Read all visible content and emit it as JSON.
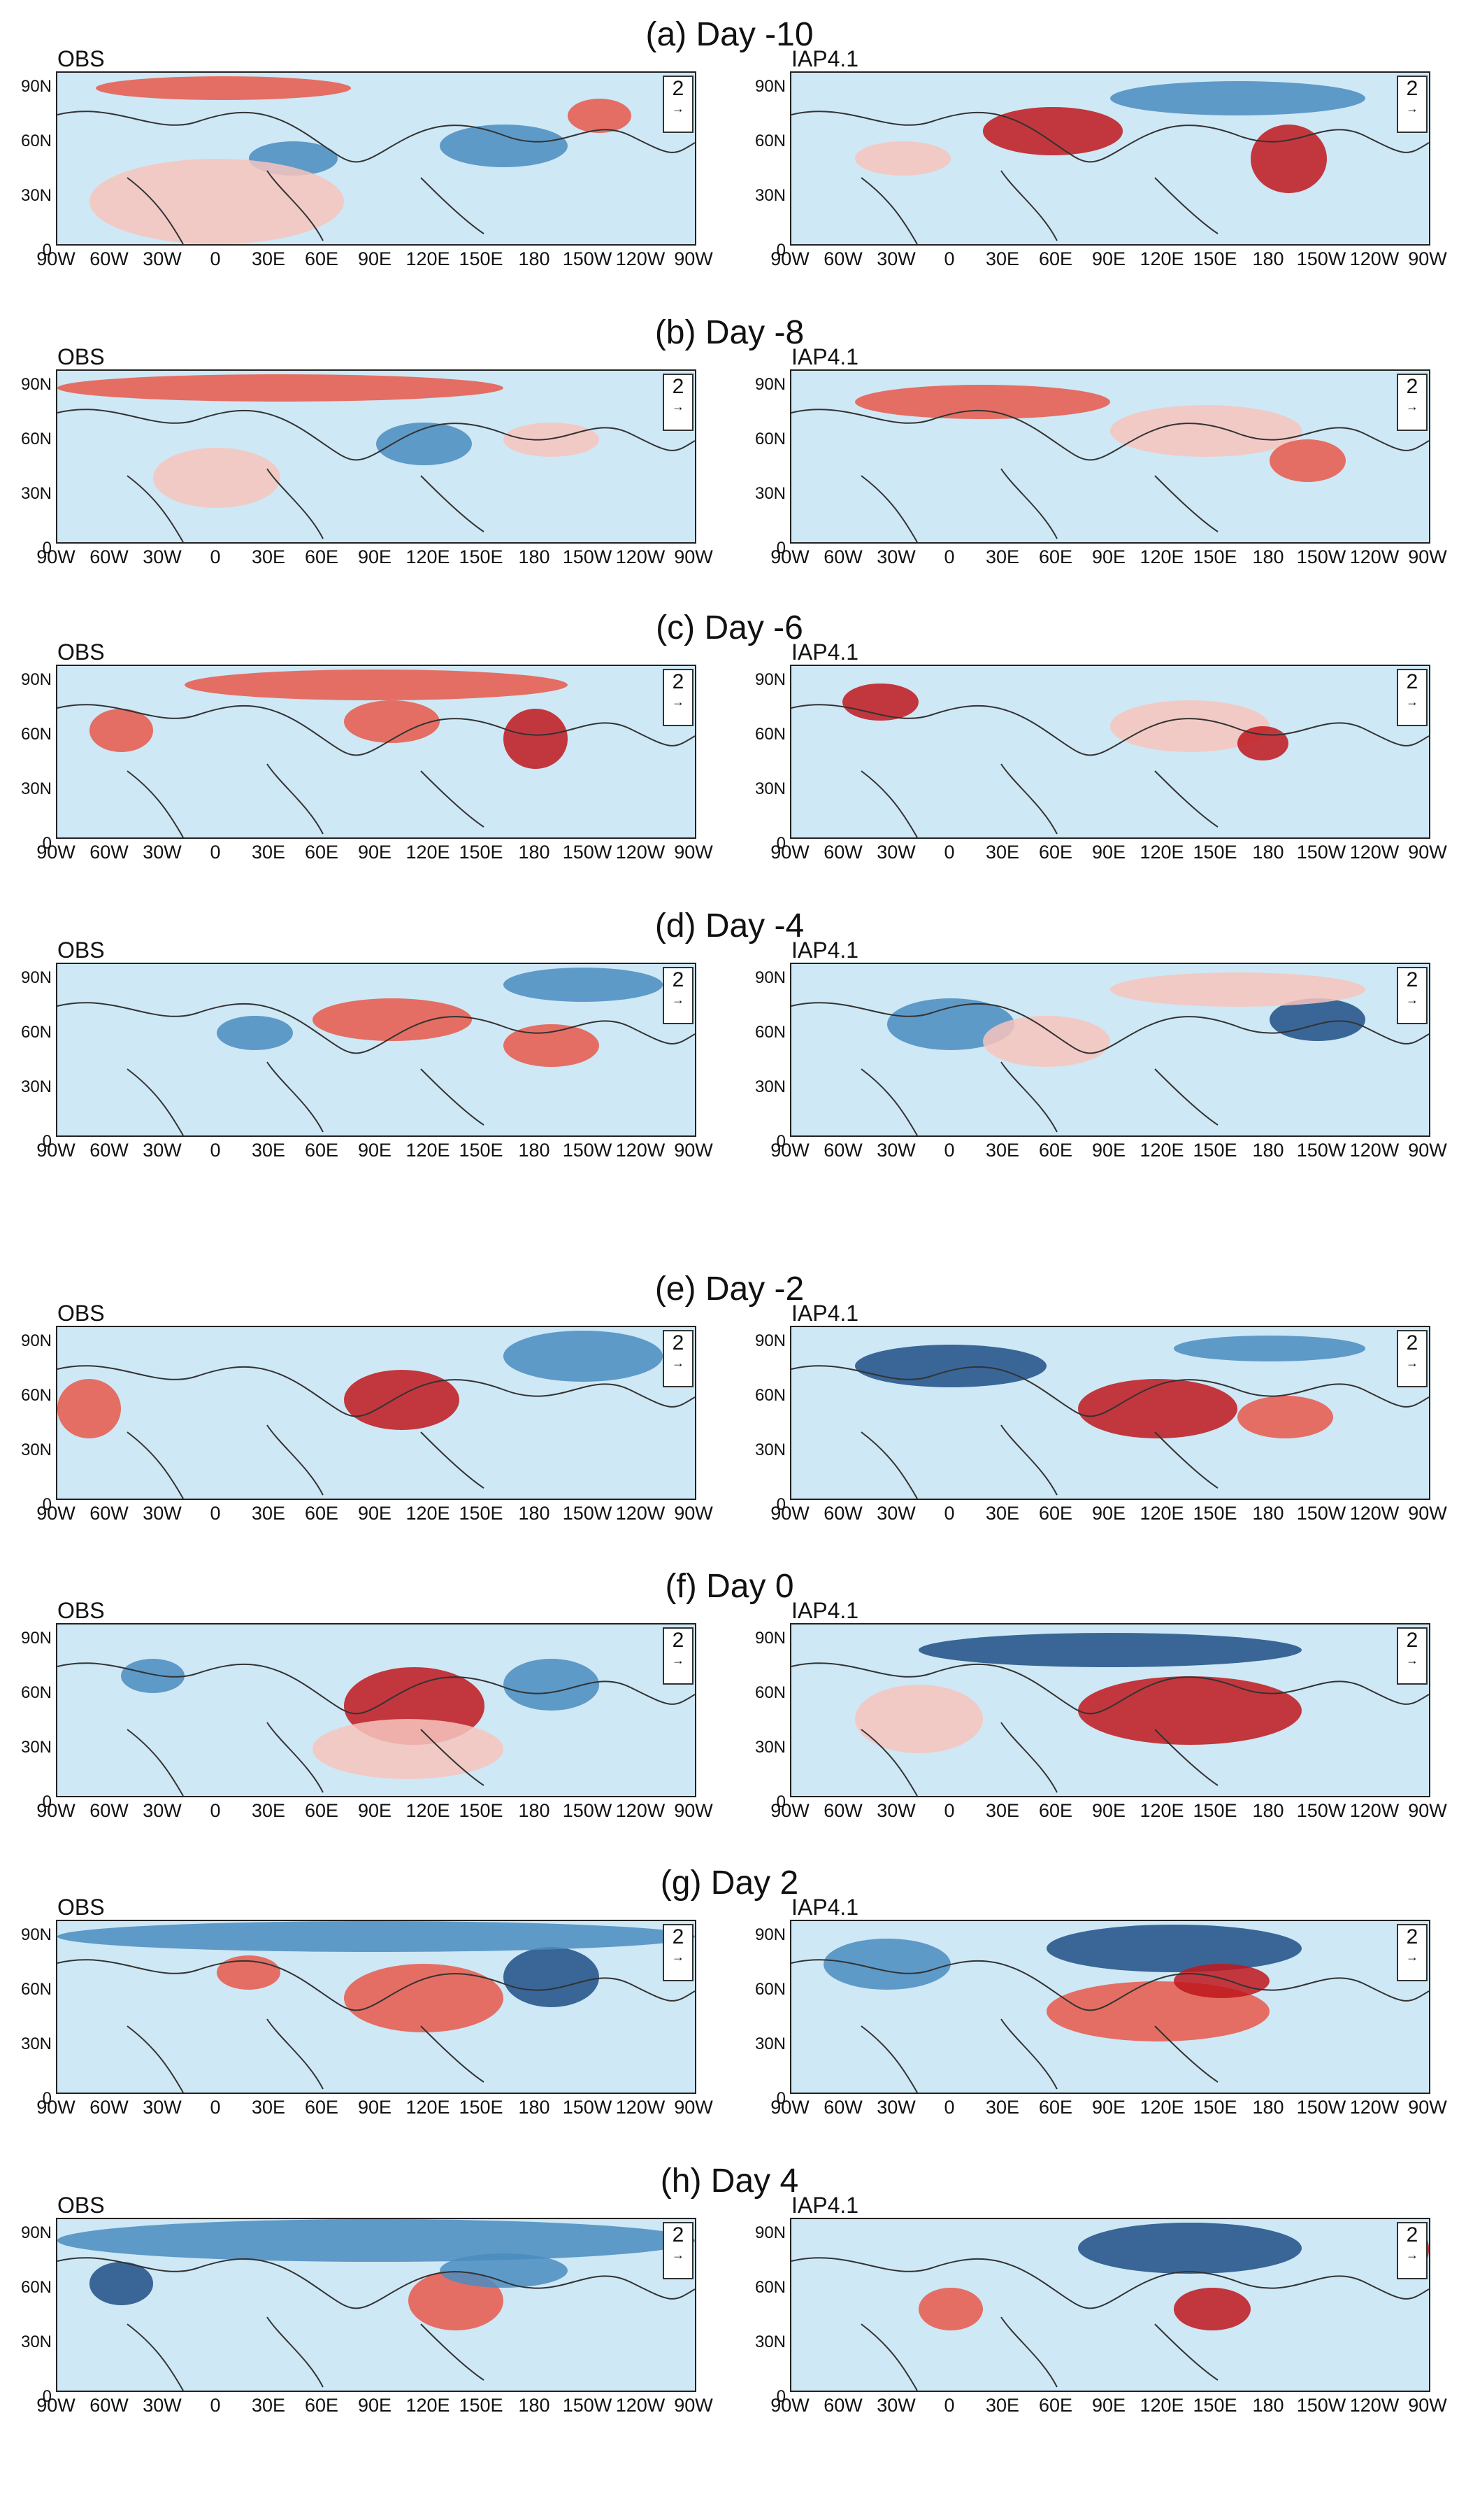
{
  "panels": [
    {
      "title": "(a) Day -10",
      "left_label": "OBS",
      "right_label": "IAP4.1"
    },
    {
      "title": "(b) Day -8",
      "left_label": "OBS",
      "right_label": "IAP4.1"
    },
    {
      "title": "(c) Day -6",
      "left_label": "OBS",
      "right_label": "IAP4.1"
    },
    {
      "title": "(d) Day -4",
      "left_label": "OBS",
      "right_label": "IAP4.1"
    },
    {
      "title": "(e) Day -2",
      "left_label": "OBS",
      "right_label": "IAP4.1"
    },
    {
      "title": "(f) Day 0",
      "left_label": "OBS",
      "right_label": "IAP4.1"
    },
    {
      "title": "(g) Day 2",
      "left_label": "OBS",
      "right_label": "IAP4.1"
    },
    {
      "title": "(h) Day 4",
      "left_label": "OBS",
      "right_label": "IAP4.1"
    }
  ],
  "lat_ticks": [
    "90N",
    "60N",
    "30N",
    "0"
  ],
  "lon_ticks": [
    "90W",
    "60W",
    "30W",
    "0",
    "30E",
    "60E",
    "90E",
    "120E",
    "150E",
    "180",
    "150W",
    "120W",
    "90W"
  ],
  "vector_reference": "2",
  "colors": {
    "warm_strong": "#c0171c",
    "warm_mid": "#e8584a",
    "warm_light": "#f7c4bd",
    "cool_strong": "#1e4f86",
    "cool_mid": "#4a8cc0",
    "cool_light": "#cfe8f5"
  }
}
